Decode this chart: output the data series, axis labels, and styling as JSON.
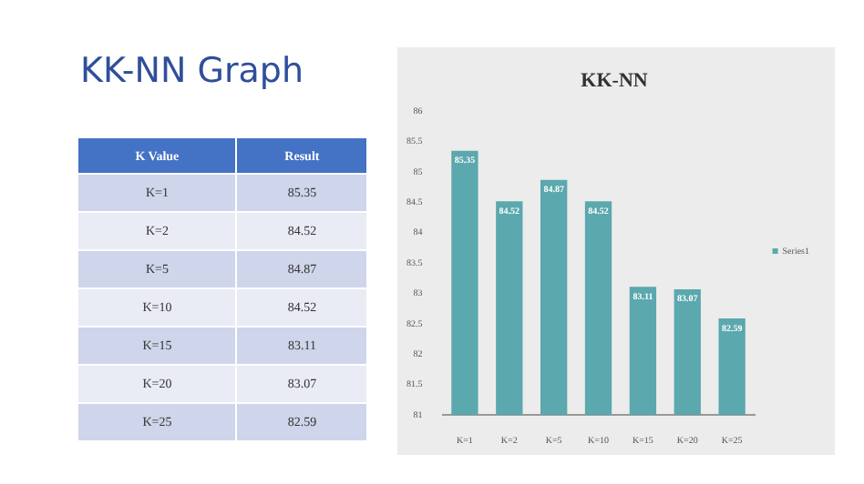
{
  "chart_data": {
    "type": "bar",
    "title": "KK-NN Graph",
    "subtitle": "KK-NN",
    "categories": [
      "K=1",
      "K=2",
      "K=5",
      "K=10",
      "K=15",
      "K=20",
      "K=25"
    ],
    "series": [
      {
        "name": "Series1",
        "color": "#5ba8ae",
        "values": [
          85.35,
          84.52,
          84.87,
          84.52,
          83.11,
          83.07,
          82.59
        ],
        "value_labels": [
          "85.35",
          "84.52",
          "84.87",
          "84.52",
          "83.11",
          "83.07",
          "82.59"
        ]
      }
    ],
    "ylim": [
      81,
      86
    ],
    "yticks": [
      81,
      81.5,
      82,
      82.5,
      83,
      83.5,
      84,
      84.5,
      85,
      85.5,
      86
    ],
    "grid": false,
    "legend": "right",
    "annotations": [
      "K Value",
      "Result"
    ]
  }
}
